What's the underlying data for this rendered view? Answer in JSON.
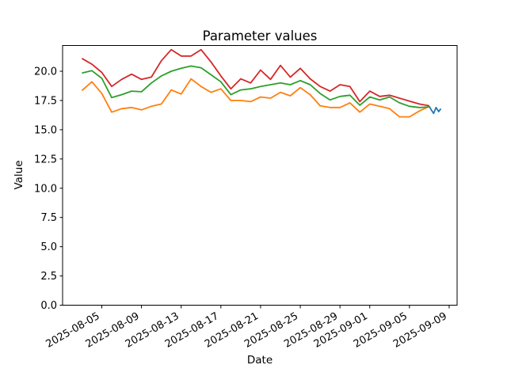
{
  "chart_data": {
    "type": "line",
    "title": "Parameter values",
    "xlabel": "Date",
    "ylabel": "Value",
    "grid": false,
    "legend": null,
    "background_color": "#ffffff",
    "spine_color": "#000000",
    "text_color": "#000000",
    "x_epoch": "2025-08-01",
    "xlim_days": [
      0.05,
      39.8
    ],
    "ylim": [
      0,
      22.2
    ],
    "y_tick_values": [
      0,
      2.5,
      5,
      7.5,
      10,
      12.5,
      15,
      17.5,
      20
    ],
    "x_tick_labels": [
      "2025-08-05",
      "2025-08-09",
      "2025-08-13",
      "2025-08-17",
      "2025-08-21",
      "2025-08-25",
      "2025-08-29",
      "2025-09-01",
      "2025-09-05",
      "2025-09-09"
    ],
    "x_tick_rotation_deg": 30,
    "series": [
      {
        "name": "blue",
        "color": "#1f77b4",
        "t_days": [
          37.0,
          37.2,
          37.44,
          37.68,
          37.95,
          38.16
        ],
        "values": [
          17.0,
          16.7,
          16.4,
          16.9,
          16.55,
          16.8
        ]
      },
      {
        "name": "orange",
        "color": "#ff7f0e",
        "start_date": "2025-08-03",
        "frequency": "daily",
        "values": [
          18.35,
          19.1,
          18.1,
          16.5,
          16.8,
          16.9,
          16.7,
          17.0,
          17.2,
          18.4,
          18.05,
          19.35,
          18.7,
          18.2,
          18.5,
          17.5,
          17.5,
          17.4,
          17.8,
          17.7,
          18.2,
          17.9,
          18.6,
          18.0,
          17.05,
          16.9,
          16.9,
          17.3,
          16.5,
          17.2,
          17.0,
          16.8,
          16.1,
          16.1,
          16.6,
          17.0
        ]
      },
      {
        "name": "green",
        "color": "#2ca02c",
        "start_date": "2025-08-03",
        "frequency": "daily",
        "values": [
          19.85,
          20.05,
          19.4,
          17.75,
          18.0,
          18.3,
          18.25,
          19.0,
          19.6,
          20.0,
          20.25,
          20.45,
          20.3,
          19.7,
          19.1,
          18.0,
          18.4,
          18.5,
          18.7,
          18.85,
          19.0,
          18.85,
          19.2,
          18.85,
          18.1,
          17.55,
          17.85,
          17.95,
          17.1,
          17.8,
          17.55,
          17.8,
          17.3,
          17.0,
          16.9,
          16.95
        ]
      },
      {
        "name": "red",
        "color": "#d62728",
        "start_date": "2025-08-03",
        "frequency": "daily",
        "values": [
          21.1,
          20.6,
          19.9,
          18.7,
          19.3,
          19.75,
          19.3,
          19.5,
          20.9,
          21.85,
          21.3,
          21.3,
          21.85,
          20.8,
          19.6,
          18.5,
          19.35,
          19.0,
          20.1,
          19.3,
          20.5,
          19.5,
          20.25,
          19.35,
          18.7,
          18.3,
          18.85,
          18.7,
          17.4,
          18.3,
          17.85,
          17.95,
          17.7,
          17.45,
          17.2,
          17.05
        ]
      }
    ]
  }
}
